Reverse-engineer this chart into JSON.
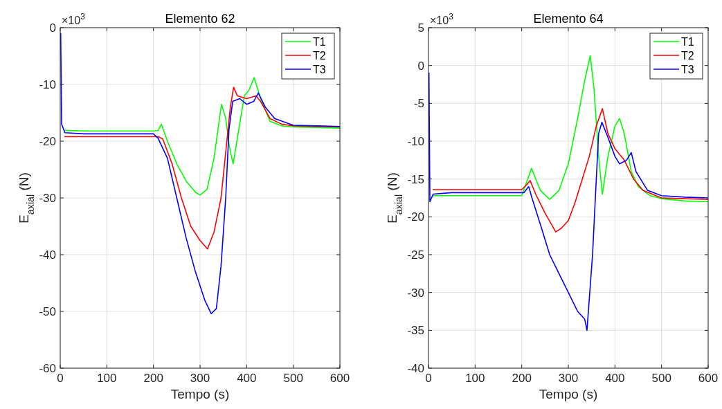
{
  "chart_data": [
    {
      "type": "line",
      "title": "Elemento 62",
      "xlabel": "Tempo (s)",
      "ylabel": "E$_{axial}$ (N)",
      "annotations": [
        "×10$^{3}$"
      ],
      "xlim": [
        0,
        600
      ],
      "ylim": [
        -60,
        0
      ],
      "xticks": [
        0,
        100,
        200,
        300,
        400,
        500,
        600
      ],
      "yticks": [
        -60,
        -50,
        -40,
        -30,
        -20,
        -10,
        0
      ],
      "grid": true,
      "legend": "top right",
      "series": [
        {
          "name": "T1",
          "color": "#00ff00",
          "x": [
            10,
            50,
            100,
            150,
            200,
            210,
            217,
            230,
            250,
            270,
            290,
            300,
            315,
            330,
            340,
            346,
            355,
            363,
            371,
            385,
            395,
            405,
            416,
            430,
            450,
            475,
            500,
            550,
            600
          ],
          "values": [
            -18.1,
            -18.2,
            -18.2,
            -18.2,
            -18.2,
            -18.1,
            -17,
            -20,
            -24,
            -27,
            -29,
            -29.5,
            -28.5,
            -23,
            -17,
            -13.5,
            -16,
            -21,
            -24,
            -17,
            -12,
            -11,
            -8.8,
            -12.5,
            -16.5,
            -17.3,
            -17.5,
            -17.6,
            -17.7
          ]
        },
        {
          "name": "T2",
          "color": "#ff0000",
          "x": [
            10,
            50,
            100,
            150,
            200,
            210,
            220,
            240,
            260,
            280,
            300,
            316,
            330,
            345,
            355,
            365,
            372,
            380,
            400,
            420,
            430,
            450,
            475,
            500,
            550,
            600
          ],
          "values": [
            -19.2,
            -19.2,
            -19.2,
            -19.2,
            -19.2,
            -19.2,
            -19.6,
            -24,
            -30,
            -35,
            -37.5,
            -39,
            -36,
            -30,
            -22,
            -14,
            -10.5,
            -12,
            -12.5,
            -12,
            -13,
            -16,
            -17,
            -17.3,
            -17.4,
            -17.5
          ]
        },
        {
          "name": "T3",
          "color": "#0000ff",
          "x": [
            1,
            3,
            10,
            50,
            100,
            150,
            200,
            210,
            230,
            250,
            270,
            290,
            310,
            324,
            335,
            345,
            355,
            362,
            370,
            385,
            400,
            415,
            425,
            440,
            460,
            500,
            550,
            600
          ],
          "values": [
            -1,
            -17,
            -18.5,
            -18.7,
            -18.7,
            -18.7,
            -18.7,
            -19.5,
            -23,
            -30,
            -37,
            -43,
            -48,
            -50.4,
            -49.5,
            -42,
            -30,
            -18,
            -13,
            -12.5,
            -13.5,
            -13,
            -11.5,
            -14,
            -16,
            -17.2,
            -17.3,
            -17.4
          ]
        }
      ]
    },
    {
      "type": "line",
      "title": "Elemento 64",
      "xlabel": "Tempo (s)",
      "ylabel": "E$_{axial}$ (N)",
      "annotations": [
        "×10$^{3}$"
      ],
      "xlim": [
        0,
        600
      ],
      "ylim": [
        -40,
        5
      ],
      "xticks": [
        0,
        100,
        200,
        300,
        400,
        500,
        600
      ],
      "yticks": [
        -40,
        -35,
        -30,
        -25,
        -20,
        -15,
        -10,
        -5,
        0,
        5
      ],
      "grid": true,
      "legend": "top right",
      "series": [
        {
          "name": "T1",
          "color": "#00ff00",
          "x": [
            10,
            50,
            100,
            150,
            200,
            210,
            221,
            240,
            260,
            280,
            300,
            320,
            335,
            347,
            355,
            365,
            373,
            385,
            400,
            410,
            420,
            435,
            450,
            475,
            500,
            550,
            600
          ],
          "values": [
            -17.2,
            -17.2,
            -17.2,
            -17.2,
            -17.2,
            -15.5,
            -13.6,
            -16.5,
            -17.7,
            -16.5,
            -13,
            -7,
            -2,
            1.3,
            -3,
            -12,
            -17,
            -12,
            -8,
            -7,
            -9,
            -14,
            -16,
            -17.2,
            -17.6,
            -17.9,
            -18
          ]
        },
        {
          "name": "T2",
          "color": "#ff0000",
          "x": [
            10,
            50,
            100,
            150,
            200,
            210,
            218,
            230,
            250,
            273,
            285,
            300,
            315,
            330,
            345,
            360,
            373,
            385,
            400,
            420,
            440,
            460,
            500,
            550,
            600
          ],
          "values": [
            -16.4,
            -16.4,
            -16.4,
            -16.4,
            -16.4,
            -15.8,
            -15.2,
            -17,
            -19.5,
            -22,
            -21.5,
            -20.5,
            -18,
            -15,
            -12,
            -8,
            -5.7,
            -9,
            -11,
            -12.5,
            -15,
            -16.5,
            -17.5,
            -17.6,
            -17.7
          ]
        },
        {
          "name": "T3",
          "color": "#0000ff",
          "x": [
            1,
            3,
            10,
            50,
            100,
            150,
            200,
            205,
            215,
            222,
            240,
            260,
            280,
            300,
            320,
            335,
            340,
            352,
            360,
            365,
            372,
            385,
            400,
            410,
            425,
            435,
            445,
            470,
            500,
            550,
            600
          ],
          "values": [
            -1,
            -18,
            -17,
            -16.8,
            -16.8,
            -16.8,
            -16.8,
            -16.8,
            -16,
            -17.5,
            -21,
            -25,
            -27.5,
            -30,
            -32.5,
            -33.5,
            -35,
            -25,
            -15,
            -9,
            -7.5,
            -9.5,
            -12,
            -13,
            -12.5,
            -11.5,
            -14,
            -16.5,
            -17.2,
            -17.4,
            -17.5
          ]
        }
      ]
    }
  ]
}
